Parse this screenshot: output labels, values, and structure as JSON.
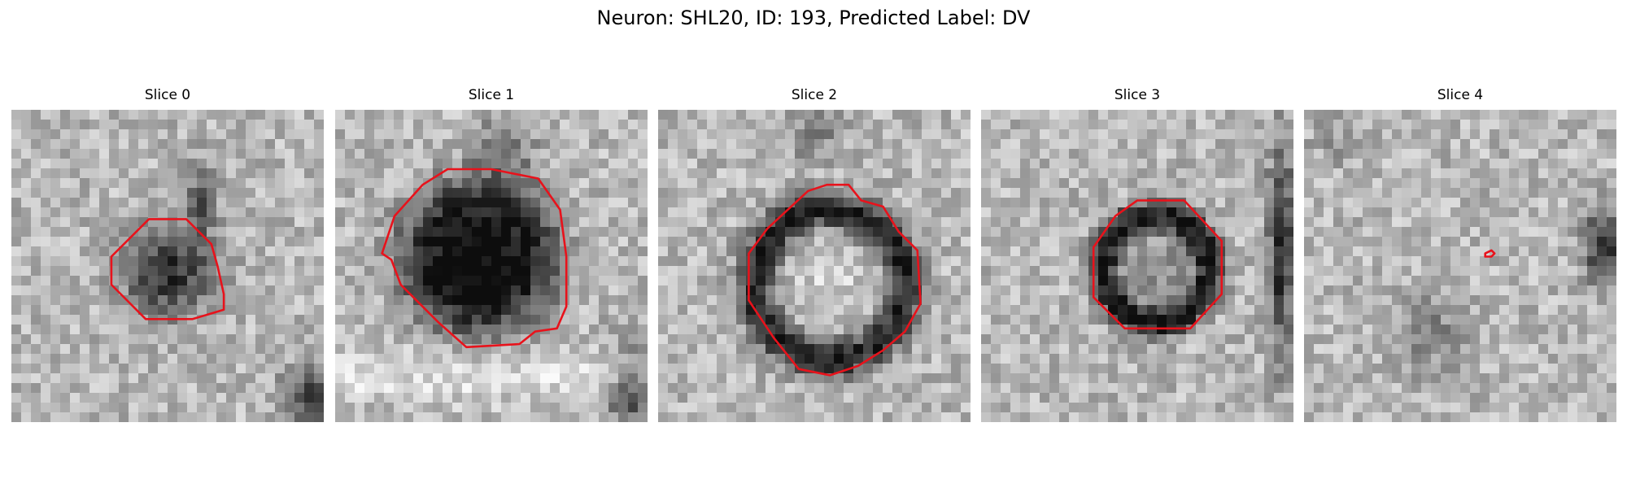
{
  "figure": {
    "title": "Neuron: SHL20, ID: 193, Predicted Label: DV",
    "contour_color": "#e8121b",
    "colormap": "gray"
  },
  "panels": [
    {
      "title": "Slice 0",
      "description": "mottled gray noise with a darker irregular cell body, outlined by a red octagon",
      "contour_points": [
        [
          0.32,
          0.47
        ],
        [
          0.44,
          0.35
        ],
        [
          0.56,
          0.35
        ],
        [
          0.64,
          0.43
        ],
        [
          0.66,
          0.5
        ],
        [
          0.68,
          0.59
        ],
        [
          0.68,
          0.64
        ],
        [
          0.58,
          0.67
        ],
        [
          0.43,
          0.67
        ],
        [
          0.32,
          0.56
        ]
      ]
    },
    {
      "title": "Slice 1",
      "description": "large dark cell body with a red outline",
      "contour_points": [
        [
          0.15,
          0.46
        ],
        [
          0.19,
          0.34
        ],
        [
          0.28,
          0.24
        ],
        [
          0.36,
          0.19
        ],
        [
          0.5,
          0.19
        ],
        [
          0.65,
          0.22
        ],
        [
          0.72,
          0.32
        ],
        [
          0.74,
          0.47
        ],
        [
          0.74,
          0.63
        ],
        [
          0.71,
          0.7
        ],
        [
          0.64,
          0.71
        ],
        [
          0.59,
          0.75
        ],
        [
          0.42,
          0.76
        ],
        [
          0.33,
          0.68
        ],
        [
          0.21,
          0.56
        ],
        [
          0.18,
          0.48
        ]
      ]
    },
    {
      "title": "Slice 2",
      "description": "ring-shaped dark cell membrane with a lighter interior, outlined in red",
      "contour_points": [
        [
          0.35,
          0.38
        ],
        [
          0.48,
          0.26
        ],
        [
          0.54,
          0.24
        ],
        [
          0.61,
          0.24
        ],
        [
          0.65,
          0.29
        ],
        [
          0.72,
          0.31
        ],
        [
          0.77,
          0.39
        ],
        [
          0.83,
          0.45
        ],
        [
          0.84,
          0.62
        ],
        [
          0.79,
          0.71
        ],
        [
          0.72,
          0.77
        ],
        [
          0.64,
          0.82
        ],
        [
          0.55,
          0.85
        ],
        [
          0.45,
          0.83
        ],
        [
          0.37,
          0.73
        ],
        [
          0.29,
          0.61
        ],
        [
          0.29,
          0.46
        ]
      ]
    },
    {
      "title": "Slice 3",
      "description": "smaller ringed cell with a red octagonal outline",
      "contour_points": [
        [
          0.36,
          0.44
        ],
        [
          0.43,
          0.34
        ],
        [
          0.5,
          0.29
        ],
        [
          0.65,
          0.29
        ],
        [
          0.77,
          0.42
        ],
        [
          0.77,
          0.59
        ],
        [
          0.67,
          0.7
        ],
        [
          0.46,
          0.7
        ],
        [
          0.36,
          0.6
        ]
      ]
    },
    {
      "title": "Slice 4",
      "description": "faint gray texture with a tiny red contour and a dark area at the right",
      "contour_points": [
        [
          0.58,
          0.46
        ],
        [
          0.6,
          0.45
        ],
        [
          0.61,
          0.46
        ],
        [
          0.6,
          0.47
        ],
        [
          0.58,
          0.47
        ]
      ]
    }
  ]
}
